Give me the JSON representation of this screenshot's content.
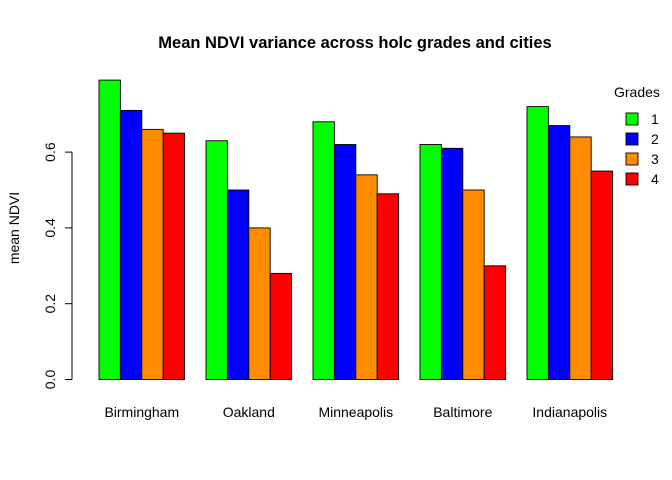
{
  "chart_data": {
    "type": "bar",
    "title": "Mean NDVI variance across holc grades and cities",
    "xlabel": "",
    "ylabel": "mean NDVI",
    "categories": [
      "Birmingham",
      "Oakland",
      "Minneapolis",
      "Baltimore",
      "Indianapolis"
    ],
    "ylim": [
      0,
      0.8
    ],
    "yticks": [
      0.0,
      0.2,
      0.4,
      0.6
    ],
    "ytick_labels": [
      "0.0",
      "0.2",
      "0.4",
      "0.6"
    ],
    "grid": false,
    "legend": {
      "title": "Grades",
      "placement": "top-right"
    },
    "series": [
      {
        "name": "1",
        "color": "#00ff00",
        "values": [
          0.79,
          0.63,
          0.68,
          0.62,
          0.72
        ]
      },
      {
        "name": "2",
        "color": "#0000ff",
        "values": [
          0.71,
          0.5,
          0.62,
          0.61,
          0.67
        ]
      },
      {
        "name": "3",
        "color": "#ff8c00",
        "values": [
          0.66,
          0.4,
          0.54,
          0.5,
          0.64
        ]
      },
      {
        "name": "4",
        "color": "#ff0000",
        "values": [
          0.65,
          0.28,
          0.49,
          0.3,
          0.55
        ]
      }
    ]
  }
}
